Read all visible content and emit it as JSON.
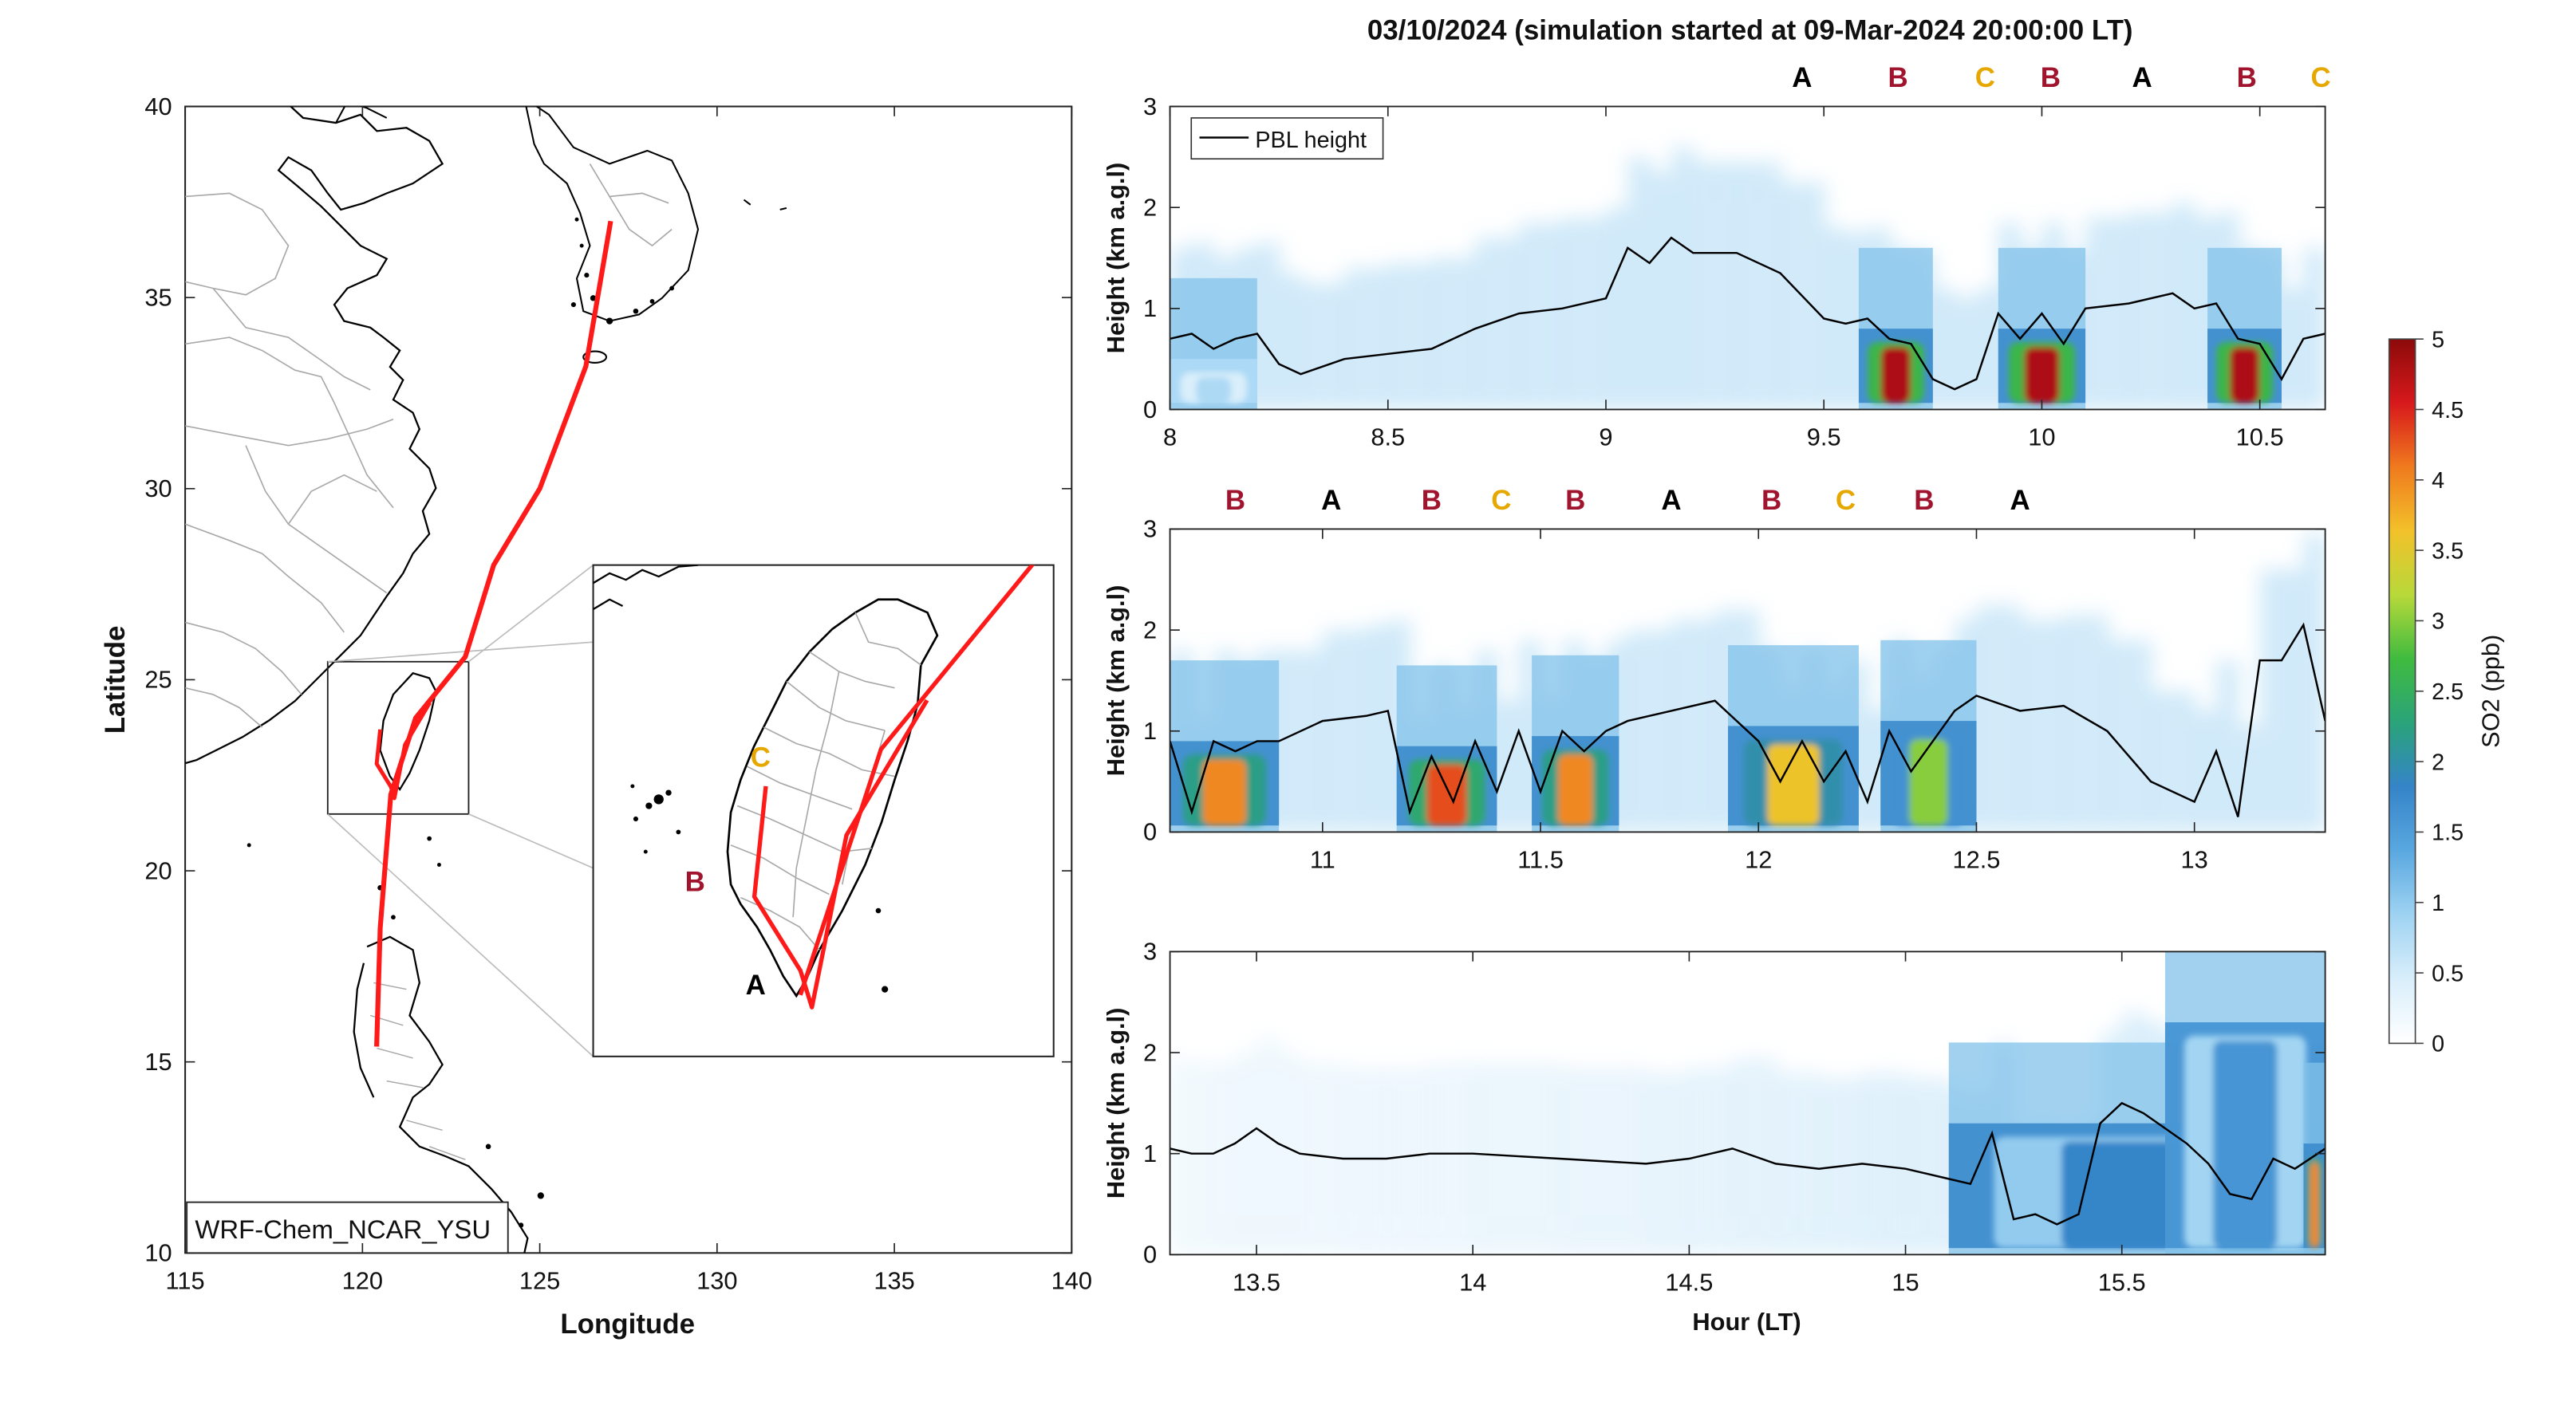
{
  "figure_title": "03/10/2024 (simulation started at 09-Mar-2024 20:00:00 LT)",
  "map": {
    "xlabel": "Longitude",
    "ylabel": "Latitude",
    "xticks": [
      115,
      120,
      125,
      130,
      135,
      140
    ],
    "yticks": [
      10,
      15,
      20,
      25,
      30,
      35,
      40
    ],
    "xlim": [
      115,
      140
    ],
    "ylim": [
      10,
      40
    ],
    "model_label": "WRF-Chem_NCAR_YSU",
    "inset_bounds": {
      "lon": [
        119,
        123
      ],
      "lat": [
        21.5,
        25.5
      ]
    },
    "flight_track": [
      [
        127.0,
        37.0
      ],
      [
        126.3,
        33.2
      ],
      [
        125.0,
        30.0
      ],
      [
        123.7,
        28.0
      ],
      [
        122.9,
        25.6
      ],
      [
        121.5,
        24.0
      ],
      [
        120.8,
        22.0
      ],
      [
        120.5,
        18.5
      ],
      [
        120.4,
        15.4
      ]
    ],
    "taiwan_track": [
      [
        120.5,
        23.7
      ],
      [
        120.4,
        22.8
      ],
      [
        120.8,
        22.2
      ],
      [
        120.9,
        21.9
      ],
      [
        121.2,
        23.3
      ],
      [
        121.9,
        24.4
      ]
    ],
    "site_labels": [
      {
        "text": "A",
        "color": "#000000",
        "lon": 120.75,
        "lat": 22.0
      },
      {
        "text": "B",
        "color": "#a0142e",
        "lon": 120.2,
        "lat": 22.95
      },
      {
        "text": "C",
        "color": "#e6a800",
        "lon": 120.65,
        "lat": 24.05
      }
    ],
    "track_color": "#ff1a1a"
  },
  "chart_data": [
    {
      "type": "heatmap",
      "xlim": [
        8,
        10.65
      ],
      "ylim": [
        0,
        3
      ],
      "xticks": [
        8,
        8.5,
        9,
        9.5,
        10,
        10.5
      ],
      "yticks": [
        0,
        1,
        2,
        3
      ],
      "ylabel": "Height (km a.g.l)",
      "legend": {
        "entries": [
          "PBL height"
        ],
        "placement": "top-left"
      },
      "pbl_height": {
        "x": [
          8.0,
          8.05,
          8.1,
          8.15,
          8.2,
          8.25,
          8.3,
          8.4,
          8.5,
          8.6,
          8.7,
          8.8,
          8.9,
          9.0,
          9.05,
          9.1,
          9.15,
          9.2,
          9.3,
          9.4,
          9.5,
          9.55,
          9.6,
          9.65,
          9.7,
          9.75,
          9.8,
          9.85,
          9.9,
          9.95,
          10.0,
          10.05,
          10.1,
          10.2,
          10.3,
          10.35,
          10.4,
          10.45,
          10.5,
          10.55,
          10.6,
          10.65
        ],
        "y": [
          0.7,
          0.75,
          0.6,
          0.7,
          0.75,
          0.45,
          0.35,
          0.5,
          0.55,
          0.6,
          0.8,
          0.95,
          1.0,
          1.1,
          1.6,
          1.45,
          1.7,
          1.55,
          1.55,
          1.35,
          0.9,
          0.85,
          0.9,
          0.7,
          0.65,
          0.3,
          0.2,
          0.3,
          0.95,
          0.7,
          0.95,
          0.65,
          1.0,
          1.05,
          1.15,
          1.0,
          1.05,
          0.7,
          0.65,
          0.3,
          0.7,
          0.75
        ]
      },
      "so2_blocks": [
        {
          "x": [
            8.0,
            8.2
          ],
          "ztop": 0.4,
          "level": 0.8
        },
        {
          "x": [
            9.58,
            9.75
          ],
          "ztop": 0.7,
          "level": 4.8
        },
        {
          "x": [
            9.9,
            10.1
          ],
          "ztop": 0.7,
          "level": 4.8
        },
        {
          "x": [
            10.38,
            10.55
          ],
          "ztop": 0.7,
          "level": 4.8
        }
      ],
      "top_labels": [
        {
          "text": "A",
          "x": 9.45,
          "color": "#000000"
        },
        {
          "text": "B",
          "x": 9.67,
          "color": "#a0142e"
        },
        {
          "text": "C",
          "x": 9.87,
          "color": "#e6a800"
        },
        {
          "text": "B",
          "x": 10.02,
          "color": "#a0142e"
        },
        {
          "text": "A",
          "x": 10.23,
          "color": "#000000"
        },
        {
          "text": "B",
          "x": 10.47,
          "color": "#a0142e"
        },
        {
          "text": "C",
          "x": 10.64,
          "color": "#e6a800"
        }
      ]
    },
    {
      "type": "heatmap",
      "xlim": [
        10.65,
        13.3
      ],
      "ylim": [
        0,
        3
      ],
      "xticks": [
        11,
        11.5,
        12,
        12.5,
        13
      ],
      "yticks": [
        0,
        1,
        2,
        3
      ],
      "ylabel": "Height (km a.g.l)",
      "pbl_height": {
        "x": [
          10.65,
          10.7,
          10.75,
          10.8,
          10.85,
          10.9,
          11.0,
          11.1,
          11.15,
          11.2,
          11.25,
          11.3,
          11.35,
          11.4,
          11.45,
          11.5,
          11.55,
          11.6,
          11.65,
          11.7,
          11.8,
          11.9,
          12.0,
          12.05,
          12.1,
          12.15,
          12.2,
          12.25,
          12.3,
          12.35,
          12.4,
          12.45,
          12.5,
          12.6,
          12.7,
          12.8,
          12.9,
          13.0,
          13.05,
          13.1,
          13.15,
          13.2,
          13.25,
          13.3
        ],
        "y": [
          0.9,
          0.2,
          0.9,
          0.8,
          0.9,
          0.9,
          1.1,
          1.15,
          1.2,
          0.2,
          0.75,
          0.3,
          0.9,
          0.4,
          1.0,
          0.4,
          1.0,
          0.8,
          1.0,
          1.1,
          1.2,
          1.3,
          0.9,
          0.5,
          0.9,
          0.5,
          0.8,
          0.3,
          1.0,
          0.6,
          0.9,
          1.2,
          1.35,
          1.2,
          1.25,
          1.0,
          0.5,
          0.3,
          0.8,
          0.15,
          1.7,
          1.7,
          2.05,
          1.1
        ]
      },
      "so2_blocks": [
        {
          "x": [
            10.65,
            10.9
          ],
          "ztop": 0.8,
          "level": 4.0
        },
        {
          "x": [
            11.17,
            11.4
          ],
          "ztop": 0.75,
          "level": 4.3
        },
        {
          "x": [
            11.48,
            11.68
          ],
          "ztop": 0.85,
          "level": 4.0
        },
        {
          "x": [
            11.93,
            12.23
          ],
          "ztop": 0.95,
          "level": 3.6
        },
        {
          "x": [
            12.28,
            12.5
          ],
          "ztop": 1.0,
          "level": 3.0
        }
      ],
      "top_labels": [
        {
          "text": "B",
          "x": 10.8,
          "color": "#a0142e"
        },
        {
          "text": "A",
          "x": 11.02,
          "color": "#000000"
        },
        {
          "text": "B",
          "x": 11.25,
          "color": "#a0142e"
        },
        {
          "text": "C",
          "x": 11.41,
          "color": "#e6a800"
        },
        {
          "text": "B",
          "x": 11.58,
          "color": "#a0142e"
        },
        {
          "text": "A",
          "x": 11.8,
          "color": "#000000"
        },
        {
          "text": "B",
          "x": 12.03,
          "color": "#a0142e"
        },
        {
          "text": "C",
          "x": 12.2,
          "color": "#e6a800"
        },
        {
          "text": "B",
          "x": 12.38,
          "color": "#a0142e"
        },
        {
          "text": "A",
          "x": 12.6,
          "color": "#000000"
        }
      ]
    },
    {
      "type": "heatmap",
      "xlim": [
        13.3,
        15.97
      ],
      "ylim": [
        0,
        3
      ],
      "xticks": [
        13.5,
        14,
        14.5,
        15,
        15.5
      ],
      "yticks": [
        0,
        1,
        2,
        3
      ],
      "ylabel": "Height (km a.g.l)",
      "xlabel": "Hour (LT)",
      "pbl_height": {
        "x": [
          13.3,
          13.35,
          13.4,
          13.45,
          13.5,
          13.55,
          13.6,
          13.7,
          13.8,
          13.9,
          14.0,
          14.2,
          14.4,
          14.5,
          14.6,
          14.7,
          14.8,
          14.9,
          15.0,
          15.1,
          15.15,
          15.2,
          15.25,
          15.3,
          15.35,
          15.4,
          15.45,
          15.5,
          15.55,
          15.6,
          15.65,
          15.7,
          15.75,
          15.8,
          15.85,
          15.9,
          15.97
        ],
        "y": [
          1.05,
          1.0,
          1.0,
          1.1,
          1.25,
          1.1,
          1.0,
          0.95,
          0.95,
          1.0,
          1.0,
          0.95,
          0.9,
          0.95,
          1.05,
          0.9,
          0.85,
          0.9,
          0.85,
          0.75,
          0.7,
          1.2,
          0.35,
          0.4,
          0.3,
          0.4,
          1.3,
          1.5,
          1.4,
          1.25,
          1.1,
          0.9,
          0.6,
          0.55,
          0.95,
          0.85,
          1.05
        ]
      },
      "so2_blocks": [
        {
          "x": [
            15.1,
            15.97
          ],
          "ztop": 1.2,
          "level": 1.8
        },
        {
          "x": [
            15.6,
            15.97
          ],
          "ztop": 2.2,
          "level": 1.6
        },
        {
          "x": [
            15.92,
            15.97
          ],
          "ztop": 1.0,
          "level": 4.0
        }
      ]
    }
  ],
  "colorbar": {
    "label": "SO2 (ppb)",
    "min": 0,
    "max": 5,
    "ticks": [
      "0",
      "0.5",
      "1",
      "1.5",
      "2",
      "2.5",
      "3",
      "3.5",
      "4",
      "4.5",
      "5"
    ],
    "colors": [
      "#ffffff",
      "#d9eefb",
      "#9fd3f2",
      "#5aa8e0",
      "#3584c8",
      "#2aa37a",
      "#3fbb3f",
      "#b8d93a",
      "#f2c12a",
      "#f07a1e",
      "#d7191c",
      "#8c0a0a"
    ]
  }
}
